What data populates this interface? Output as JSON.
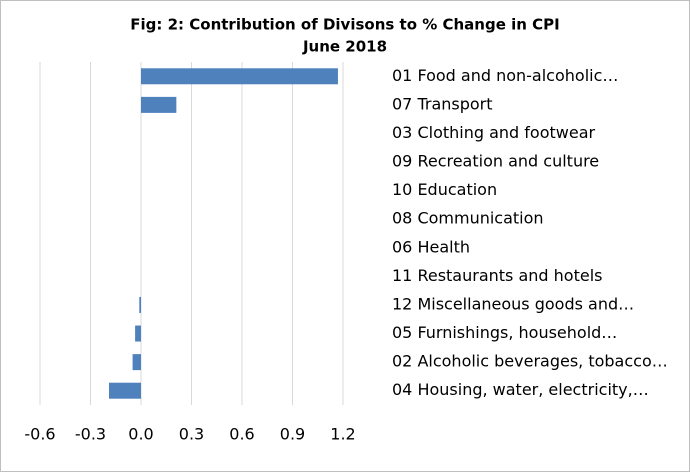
{
  "chart_data": {
    "type": "hbar",
    "title": "Fig: 2: Contribution of Divisons to % Change in CPI",
    "subtitle": "June 2018",
    "categories": [
      "01 Food and non-alcoholic…",
      "07 Transport",
      "03 Clothing and footwear",
      "09 Recreation and culture",
      "10 Education",
      "08 Communication",
      "06 Health",
      "11 Restaurants and hotels",
      "12 Miscellaneous goods and…",
      "05 Furnishings, household…",
      "02 Alcoholic beverages, tobacco…",
      "04 Housing, water, electricity,…"
    ],
    "values": [
      1.17,
      0.21,
      0,
      0,
      0,
      0,
      0,
      0,
      -0.01,
      -0.035,
      -0.05,
      -0.19
    ],
    "color": "#4f81bd",
    "xlim": [
      -0.6,
      1.2
    ],
    "xticks": [
      -0.6,
      -0.3,
      {
        "value": 0,
        "label": "0.0"
      },
      0.3,
      0.6,
      0.9,
      1.2
    ],
    "grid": true
  }
}
